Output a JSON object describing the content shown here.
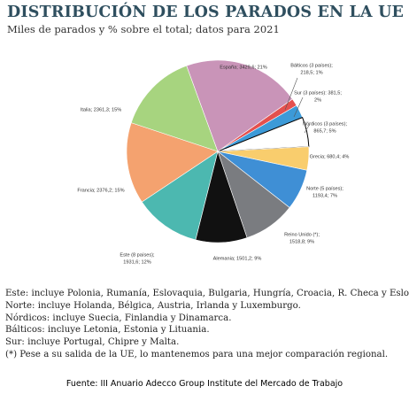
{
  "chart_data": {
    "type": "pie",
    "title": "DISTRIBUCIÓN DE LOS PARADOS EN LA UE",
    "subtitle": "Miles de parados y % sobre el total; datos para 2021",
    "values": [
      218.5,
      381.5,
      865.7,
      680.4,
      1193.4,
      1518.8,
      1501.2,
      1931.6,
      2376.2,
      2361.3,
      3429.6
    ],
    "value_labels": [
      [
        "Bálticos (3 países);",
        "218,5; 1%"
      ],
      [
        "Sur (3 países): 381,5;",
        "2%"
      ],
      [
        "Nórdicos (3 países);",
        "865,7; 5%"
      ],
      [
        "Grecia; 680,4; 4%"
      ],
      [
        "Norte (5 países);",
        "1193,4; 7%"
      ],
      [
        "Reino Unido (*);",
        "1518,8; 9%"
      ],
      [
        "Alemania; 1501,2; 9%"
      ],
      [
        "Este (8 países);",
        "1931,6; 12%"
      ],
      [
        "Francia; 2376,2; 15%"
      ],
      [
        "Italia; 2361,3; 15%"
      ],
      [
        "España; 3429,6; 21%"
      ]
    ],
    "colors": [
      "#e4504e",
      "#3c9ad8",
      "#ffffff",
      "#f9cd6d",
      "#3f8fd5",
      "#7a7c80",
      "#111111",
      "#4cb8b0",
      "#f4a26f",
      "#a7d47f",
      "#c994b8"
    ],
    "notes": [
      "Este: incluye Polonia, Rumanía, Eslovaquia, Bulgaria, Hungría, Croacia, R. Checa y Eslovenia.",
      "Norte: incluye Holanda, Bélgica, Austria, Irlanda y Luxemburgo.",
      "Nórdicos: incluye Suecia, Finlandia y Dinamarca.",
      "Bálticos: incluye Letonia, Estonia y Lituania.",
      "Sur: incluye Portugal, Chipre y Malta.",
      "(*) Pese a su salida de la UE, lo mantenemos para una mejor comparación regional."
    ],
    "source": "Fuente: III Anuario Adecco Group Institute del Mercado de Trabajo"
  }
}
